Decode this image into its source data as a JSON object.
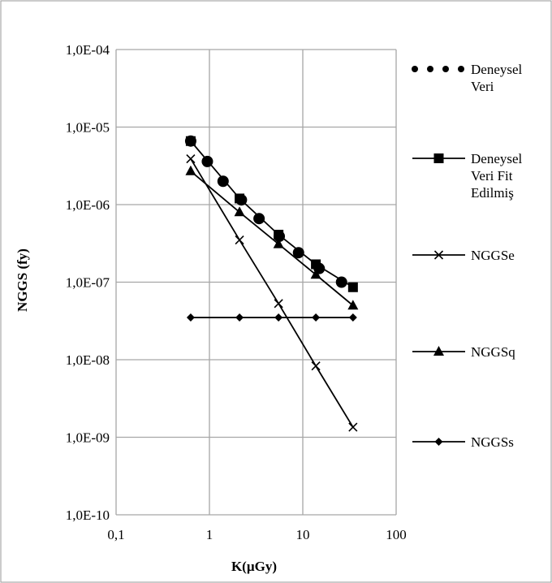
{
  "chart_data": {
    "type": "scatter",
    "xlabel": "K(µGy)",
    "ylabel": "NGGS (fy)",
    "x_scale": "log",
    "y_scale": "log",
    "xlim": [
      0.1,
      100
    ],
    "ylim": [
      1e-10,
      0.0001
    ],
    "x_ticks": [
      "0,1",
      "1",
      "10",
      "100"
    ],
    "y_ticks": [
      "1,0E-10",
      "1,0E-09",
      "1,0E-08",
      "1,0E-07",
      "1,0E-06",
      "1,0E-05",
      "1,0E-04"
    ],
    "grid": true,
    "legend_position": "right",
    "series": [
      {
        "name": "Deneysel Veri",
        "legend_lines": [
          "Deneysel",
          "Veri"
        ],
        "marker": "circle",
        "line": false,
        "x": [
          0.63,
          0.95,
          1.4,
          2.2,
          3.4,
          5.6,
          9.0,
          15.0,
          26.0
        ],
        "y": [
          6.6e-06,
          3.6e-06,
          2e-06,
          1.15e-06,
          6.6e-07,
          3.9e-07,
          2.4e-07,
          1.5e-07,
          1e-07
        ]
      },
      {
        "name": "Deneysel Veri Fit Edilmiş",
        "legend_lines": [
          "Deneysel",
          "Veri Fit",
          "Edilmiş"
        ],
        "marker": "square",
        "line": true,
        "x": [
          0.63,
          2.1,
          5.5,
          13.8,
          34.5
        ],
        "y": [
          6.6e-06,
          1.2e-06,
          4.1e-07,
          1.7e-07,
          8.6e-08
        ]
      },
      {
        "name": "NGGSe",
        "legend_lines": [
          "NGGSe"
        ],
        "marker": "x",
        "line": true,
        "x": [
          0.63,
          2.1,
          5.5,
          13.8,
          34.5
        ],
        "y": [
          3.9e-06,
          3.5e-07,
          5.3e-08,
          8.3e-09,
          1.35e-09
        ]
      },
      {
        "name": "NGGSq",
        "legend_lines": [
          "NGGSq"
        ],
        "marker": "triangle",
        "line": true,
        "x": [
          0.63,
          2.1,
          5.5,
          13.8,
          34.5
        ],
        "y": [
          2.7e-06,
          8e-07,
          3.1e-07,
          1.25e-07,
          5e-08
        ]
      },
      {
        "name": "NGGSs",
        "legend_lines": [
          "NGGSs"
        ],
        "marker": "diamond",
        "line": true,
        "x": [
          0.63,
          2.1,
          5.5,
          13.8,
          34.5
        ],
        "y": [
          3.5e-08,
          3.5e-08,
          3.5e-08,
          3.5e-08,
          3.5e-08
        ]
      }
    ]
  }
}
